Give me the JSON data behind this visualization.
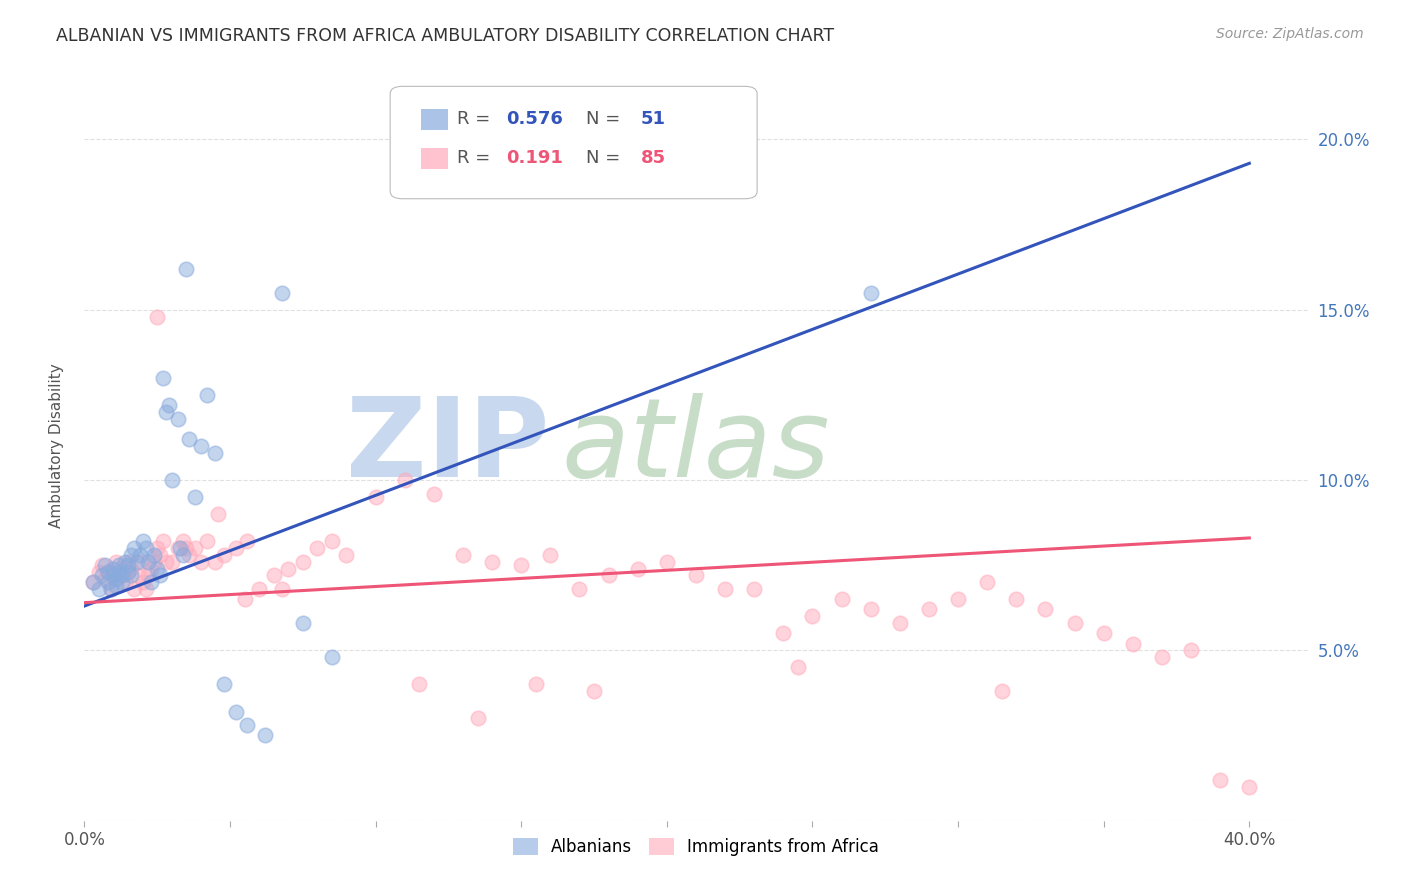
{
  "title": "ALBANIAN VS IMMIGRANTS FROM AFRICA AMBULATORY DISABILITY CORRELATION CHART",
  "source": "Source: ZipAtlas.com",
  "ylabel": "Ambulatory Disability",
  "xlim": [
    0.0,
    0.42
  ],
  "ylim": [
    0.0,
    0.22
  ],
  "background_color": "#ffffff",
  "grid_color": "#e0e0e0",
  "blue_color": "#88aadd",
  "pink_color": "#ffaabb",
  "line_blue": "#3355bb",
  "line_pink": "#ee5577",
  "blue_line_start_y": 0.063,
  "blue_line_end_y": 0.193,
  "pink_line_start_y": 0.064,
  "pink_line_end_y": 0.083,
  "albanians_x": [
    0.003,
    0.005,
    0.006,
    0.007,
    0.008,
    0.008,
    0.009,
    0.01,
    0.01,
    0.011,
    0.011,
    0.012,
    0.012,
    0.013,
    0.013,
    0.014,
    0.015,
    0.015,
    0.016,
    0.016,
    0.017,
    0.018,
    0.019,
    0.02,
    0.021,
    0.022,
    0.023,
    0.024,
    0.025,
    0.026,
    0.027,
    0.028,
    0.029,
    0.03,
    0.032,
    0.033,
    0.034,
    0.035,
    0.036,
    0.038,
    0.04,
    0.042,
    0.045,
    0.048,
    0.052,
    0.056,
    0.062,
    0.068,
    0.075,
    0.085,
    0.27
  ],
  "albanians_y": [
    0.07,
    0.068,
    0.072,
    0.075,
    0.07,
    0.073,
    0.068,
    0.072,
    0.074,
    0.071,
    0.069,
    0.075,
    0.073,
    0.072,
    0.07,
    0.076,
    0.075,
    0.073,
    0.078,
    0.072,
    0.08,
    0.076,
    0.078,
    0.082,
    0.08,
    0.076,
    0.07,
    0.078,
    0.074,
    0.072,
    0.13,
    0.12,
    0.122,
    0.1,
    0.118,
    0.08,
    0.078,
    0.162,
    0.112,
    0.095,
    0.11,
    0.125,
    0.108,
    0.04,
    0.032,
    0.028,
    0.025,
    0.155,
    0.058,
    0.048,
    0.155
  ],
  "africa_x": [
    0.003,
    0.005,
    0.006,
    0.007,
    0.008,
    0.009,
    0.01,
    0.011,
    0.012,
    0.013,
    0.014,
    0.015,
    0.016,
    0.017,
    0.018,
    0.019,
    0.02,
    0.021,
    0.022,
    0.023,
    0.024,
    0.025,
    0.026,
    0.027,
    0.028,
    0.03,
    0.032,
    0.034,
    0.036,
    0.038,
    0.04,
    0.042,
    0.045,
    0.048,
    0.052,
    0.056,
    0.06,
    0.065,
    0.07,
    0.075,
    0.08,
    0.085,
    0.09,
    0.1,
    0.11,
    0.12,
    0.13,
    0.14,
    0.15,
    0.16,
    0.17,
    0.18,
    0.19,
    0.2,
    0.21,
    0.22,
    0.23,
    0.24,
    0.25,
    0.26,
    0.27,
    0.28,
    0.29,
    0.3,
    0.31,
    0.32,
    0.33,
    0.34,
    0.35,
    0.36,
    0.37,
    0.38,
    0.39,
    0.4,
    0.025,
    0.035,
    0.046,
    0.055,
    0.068,
    0.115,
    0.135,
    0.155,
    0.175,
    0.245,
    0.315
  ],
  "africa_y": [
    0.07,
    0.073,
    0.075,
    0.071,
    0.073,
    0.068,
    0.072,
    0.076,
    0.074,
    0.072,
    0.07,
    0.076,
    0.074,
    0.068,
    0.072,
    0.076,
    0.07,
    0.068,
    0.072,
    0.074,
    0.076,
    0.08,
    0.078,
    0.082,
    0.076,
    0.076,
    0.08,
    0.082,
    0.078,
    0.08,
    0.076,
    0.082,
    0.076,
    0.078,
    0.08,
    0.082,
    0.068,
    0.072,
    0.074,
    0.076,
    0.08,
    0.082,
    0.078,
    0.095,
    0.1,
    0.096,
    0.078,
    0.076,
    0.075,
    0.078,
    0.068,
    0.072,
    0.074,
    0.076,
    0.072,
    0.068,
    0.068,
    0.055,
    0.06,
    0.065,
    0.062,
    0.058,
    0.062,
    0.065,
    0.07,
    0.065,
    0.062,
    0.058,
    0.055,
    0.052,
    0.048,
    0.05,
    0.012,
    0.01,
    0.148,
    0.08,
    0.09,
    0.065,
    0.068,
    0.04,
    0.03,
    0.04,
    0.038,
    0.045,
    0.038
  ]
}
